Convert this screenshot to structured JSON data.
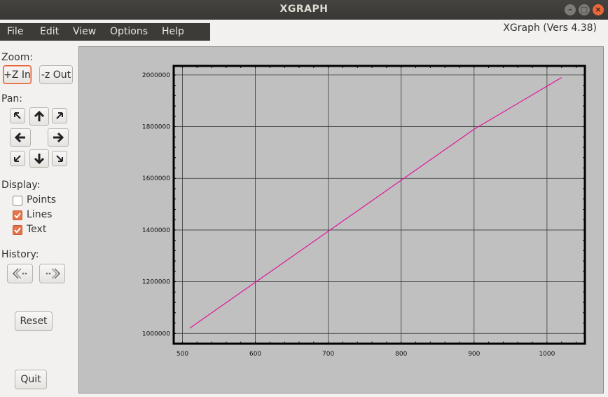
{
  "window": {
    "title": "XGRAPH",
    "controls": [
      "close",
      "minimize",
      "maximize"
    ]
  },
  "menu": {
    "items": [
      "File",
      "Edit",
      "View",
      "Options",
      "Help"
    ]
  },
  "version_label": "XGraph (Vers 4.38)",
  "panel": {
    "zoom_label": "Zoom:",
    "zoom_in": "+Z In",
    "zoom_out": "-z Out",
    "pan_label": "Pan:",
    "display_label": "Display:",
    "display_options": [
      {
        "label": "Points",
        "checked": false
      },
      {
        "label": "Lines",
        "checked": true
      },
      {
        "label": "Text",
        "checked": true
      }
    ],
    "history_label": "History:",
    "reset": "Reset",
    "quit": "Quit"
  },
  "colors": {
    "accent": "#e95420",
    "checkbox_on": "#e4744b",
    "plot_bg": "#c0c0c0",
    "series": "#e0179a"
  },
  "chart_data": {
    "type": "line",
    "title": "",
    "xlabel": "",
    "ylabel": "",
    "x_ticks": [
      500,
      600,
      700,
      800,
      900,
      1000
    ],
    "y_ticks": [
      1000000,
      1200000,
      1400000,
      1600000,
      1800000,
      2000000
    ],
    "x_tick_labels": [
      "500",
      "600",
      "700",
      "800",
      "900",
      "1000"
    ],
    "y_tick_labels": [
      "1000000",
      "1200000",
      "1400000",
      "1600000",
      "1800000",
      "2000000"
    ],
    "xlim": [
      488,
      1052
    ],
    "ylim": [
      960000,
      2035000
    ],
    "grid": true,
    "series": [
      {
        "x": [
          510,
          900,
          1020
        ],
        "y": [
          1020000,
          1790000,
          1990000
        ]
      }
    ]
  }
}
